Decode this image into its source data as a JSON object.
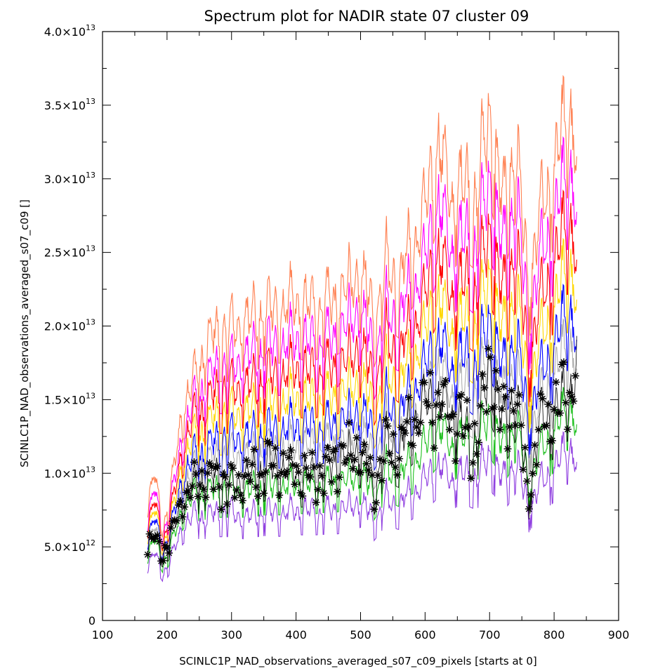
{
  "chart_data": {
    "type": "line",
    "title": "Spectrum plot for NADIR state 07 cluster 09",
    "xlabel": "SCINLC1P_NAD_observations_averaged_s07_c09_pixels [starts at 0]",
    "ylabel": "SCINLC1P_NAD_observations_averaged_s07_c09 []",
    "xlim": [
      100,
      900
    ],
    "ylim": [
      0,
      40000000000000.0
    ],
    "x_ticks": [
      100,
      200,
      300,
      400,
      500,
      600,
      700,
      800,
      900
    ],
    "x_tick_labels": [
      "100",
      "200",
      "300",
      "400",
      "500",
      "600",
      "700",
      "800",
      "900"
    ],
    "y_ticks": [
      0,
      5000000000000.0,
      10000000000000.0,
      15000000000000.0,
      20000000000000.0,
      25000000000000.0,
      30000000000000.0,
      35000000000000.0,
      40000000000000.0
    ],
    "y_tick_labels": [
      {
        "mantissa": "0",
        "exponent": ""
      },
      {
        "mantissa": "5.0×10",
        "exponent": "12"
      },
      {
        "mantissa": "1.0×10",
        "exponent": "13"
      },
      {
        "mantissa": "1.5×10",
        "exponent": "13"
      },
      {
        "mantissa": "2.0×10",
        "exponent": "13"
      },
      {
        "mantissa": "2.5×10",
        "exponent": "13"
      },
      {
        "mantissa": "3.0×10",
        "exponent": "13"
      },
      {
        "mantissa": "3.5×10",
        "exponent": "13"
      },
      {
        "mantissa": "4.0×10",
        "exponent": "13"
      }
    ],
    "x_range_data": [
      170,
      835
    ],
    "envelope": {
      "x": [
        170,
        180,
        195,
        210,
        225,
        240,
        260,
        280,
        300,
        320,
        340,
        360,
        380,
        400,
        420,
        440,
        460,
        480,
        500,
        520,
        540,
        560,
        580,
        600,
        620,
        640,
        660,
        680,
        700,
        710,
        720,
        740,
        760,
        780,
        800,
        820,
        830,
        835
      ],
      "max": [
        7500000000000.0,
        10000000000000.0,
        6500000000000.0,
        10000000000000.0,
        15000000000000.0,
        16500000000000.0,
        19000000000000.0,
        20000000000000.0,
        20000000000000.0,
        21000000000000.0,
        21000000000000.0,
        21500000000000.0,
        21500000000000.0,
        22000000000000.0,
        21500000000000.0,
        22000000000000.0,
        22000000000000.0,
        23000000000000.0,
        24000000000000.0,
        21000000000000.0,
        24500000000000.0,
        23500000000000.0,
        26000000000000.0,
        28000000000000.0,
        33000000000000.0,
        29000000000000.0,
        30000000000000.0,
        29000000000000.0,
        35000000000000.0,
        32000000000000.0,
        28000000000000.0,
        33000000000000.0,
        23000000000000.0,
        28000000000000.0,
        31000000000000.0,
        35000000000000.0,
        35000000000000.0,
        29000000000000.0
      ],
      "min": [
        3000000000000.0,
        3200000000000.0,
        2800000000000.0,
        4000000000000.0,
        5500000000000.0,
        6000000000000.0,
        5500000000000.0,
        5000000000000.0,
        4800000000000.0,
        3500000000000.0,
        5200000000000.0,
        4800000000000.0,
        4500000000000.0,
        4500000000000.0,
        4800000000000.0,
        5000000000000.0,
        4500000000000.0,
        4200000000000.0,
        4800000000000.0,
        3200000000000.0,
        4000000000000.0,
        4500000000000.0,
        5500000000000.0,
        5000000000000.0,
        6000000000000.0,
        6000000000000.0,
        5000000000000.0,
        4500000000000.0,
        7000000000000.0,
        6000000000000.0,
        6000000000000.0,
        5500000000000.0,
        4000000000000.0,
        6000000000000.0,
        5500000000000.0,
        7000000000000.0,
        8000000000000.0,
        9000000000000.0
      ]
    },
    "series": [
      {
        "color": "#ff7f50",
        "values": [
          7500000000000.0,
          9800000000000.0,
          6300000000000.0,
          9800000000000.0,
          14800000000000.0,
          16000000000000.0,
          18500000000000.0,
          19500000000000.0,
          19500000000000.0,
          20500000000000.0,
          20500000000000.0,
          21000000000000.0,
          21000000000000.0,
          21500000000000.0,
          21000000000000.0,
          21500000000000.0,
          21500000000000.0,
          22500000000000.0,
          23500000000000.0,
          20500000000000.0,
          24000000000000.0,
          23000000000000.0,
          25500000000000.0,
          27500000000000.0,
          32500000000000.0,
          28500000000000.0,
          29500000000000.0,
          28500000000000.0,
          34500000000000.0,
          31500000000000.0,
          27500000000000.0,
          32500000000000.0,
          22500000000000.0,
          27500000000000.0,
          30500000000000.0,
          34500000000000.0,
          34500000000000.0,
          28500000000000.0
        ]
      },
      {
        "color": "#ff00ff",
        "values": [
          6500000000000.0,
          8800000000000.0,
          5800000000000.0,
          8800000000000.0,
          13000000000000.0,
          14500000000000.0,
          16000000000000.0,
          17000000000000.0,
          17000000000000.0,
          18000000000000.0,
          18000000000000.0,
          18500000000000.0,
          18500000000000.0,
          19000000000000.0,
          18500000000000.0,
          19000000000000.0,
          19000000000000.0,
          20000000000000.0,
          21000000000000.0,
          18000000000000.0,
          21000000000000.0,
          20500000000000.0,
          22500000000000.0,
          24000000000000.0,
          28500000000000.0,
          25000000000000.0,
          26000000000000.0,
          25000000000000.0,
          30000000000000.0,
          28000000000000.0,
          24500000000000.0,
          29000000000000.0,
          20000000000000.0,
          24500000000000.0,
          27000000000000.0,
          30500000000000.0,
          30500000000000.0,
          25000000000000.0
        ]
      },
      {
        "color": "#ff0000",
        "values": [
          6000000000000.0,
          8000000000000.0,
          5400000000000.0,
          8000000000000.0,
          12000000000000.0,
          13500000000000.0,
          14500000000000.0,
          15500000000000.0,
          15500000000000.0,
          16000000000000.0,
          16000000000000.0,
          16500000000000.0,
          16500000000000.0,
          17000000000000.0,
          16500000000000.0,
          17000000000000.0,
          17000000000000.0,
          17500000000000.0,
          18500000000000.0,
          16000000000000.0,
          19000000000000.0,
          18000000000000.0,
          20000000000000.0,
          21500000000000.0,
          25000000000000.0,
          22000000000000.0,
          23000000000000.0,
          22000000000000.0,
          26500000000000.0,
          24500000000000.0,
          21500000000000.0,
          25500000000000.0,
          17500000000000.0,
          21500000000000.0,
          24000000000000.0,
          27000000000000.0,
          27000000000000.0,
          22000000000000.0
        ]
      },
      {
        "color": "#ffd700",
        "values": [
          5600000000000.0,
          7400000000000.0,
          5100000000000.0,
          7400000000000.0,
          11000000000000.0,
          12200000000000.0,
          13000000000000.0,
          13800000000000.0,
          13800000000000.0,
          14200000000000.0,
          14200000000000.0,
          14600000000000.0,
          14600000000000.0,
          15000000000000.0,
          14600000000000.0,
          15000000000000.0,
          15000000000000.0,
          15500000000000.0,
          16200000000000.0,
          14200000000000.0,
          16800000000000.0,
          16000000000000.0,
          17800000000000.0,
          19200000000000.0,
          22000000000000.0,
          19500000000000.0,
          20500000000000.0,
          19500000000000.0,
          23500000000000.0,
          21500000000000.0,
          19000000000000.0,
          22500000000000.0,
          15500000000000.0,
          19000000000000.0,
          21000000000000.0,
          24000000000000.0,
          24000000000000.0,
          19500000000000.0
        ]
      },
      {
        "color": "#0000ff",
        "values": [
          5200000000000.0,
          6800000000000.0,
          4800000000000.0,
          6800000000000.0,
          10000000000000.0,
          11000000000000.0,
          11500000000000.0,
          12200000000000.0,
          12200000000000.0,
          12500000000000.0,
          12500000000000.0,
          12800000000000.0,
          12800000000000.0,
          13200000000000.0,
          12800000000000.0,
          13200000000000.0,
          13200000000000.0,
          13600000000000.0,
          14200000000000.0,
          12500000000000.0,
          14800000000000.0,
          14000000000000.0,
          15600000000000.0,
          16800000000000.0,
          19200000000000.0,
          17000000000000.0,
          18000000000000.0,
          17000000000000.0,
          20500000000000.0,
          19000000000000.0,
          16500000000000.0,
          19500000000000.0,
          13500000000000.0,
          16500000000000.0,
          18500000000000.0,
          21000000000000.0,
          21000000000000.0,
          17000000000000.0
        ]
      },
      {
        "color": "#b0b0b0",
        "values": [
          4800000000000.0,
          6200000000000.0,
          4500000000000.0,
          6200000000000.0,
          9200000000000.0,
          10000000000000.0,
          10500000000000.0,
          11000000000000.0,
          11000000000000.0,
          11200000000000.0,
          11200000000000.0,
          11500000000000.0,
          11500000000000.0,
          11800000000000.0,
          11500000000000.0,
          11800000000000.0,
          11800000000000.0,
          12200000000000.0,
          12800000000000.0,
          11000000000000.0,
          13200000000000.0,
          12600000000000.0,
          14000000000000.0,
          15000000000000.0,
          17200000000000.0,
          15200000000000.0,
          16000000000000.0,
          15200000000000.0,
          18200000000000.0,
          16800000000000.0,
          14800000000000.0,
          17500000000000.0,
          12000000000000.0,
          14800000000000.0,
          16500000000000.0,
          18800000000000.0,
          18800000000000.0,
          15200000000000.0
        ]
      },
      {
        "color": "#20c020",
        "values": [
          4200000000000.0,
          5400000000000.0,
          3900000000000.0,
          5400000000000.0,
          7800000000000.0,
          8400000000000.0,
          8600000000000.0,
          8800000000000.0,
          8800000000000.0,
          8800000000000.0,
          8900000000000.0,
          9000000000000.0,
          9000000000000.0,
          9200000000000.0,
          9000000000000.0,
          9200000000000.0,
          9200000000000.0,
          9500000000000.0,
          9900000000000.0,
          8500000000000.0,
          10200000000000.0,
          9700000000000.0,
          10800000000000.0,
          11600000000000.0,
          13200000000000.0,
          11800000000000.0,
          12400000000000.0,
          11800000000000.0,
          14000000000000.0,
          13000000000000.0,
          11400000000000.0,
          13500000000000.0,
          9300000000000.0,
          11400000000000.0,
          12700000000000.0,
          14500000000000.0,
          14500000000000.0,
          11800000000000.0
        ]
      },
      {
        "color": "#9040e0",
        "values": [
          3500000000000.0,
          4500000000000.0,
          3200000000000.0,
          4500000000000.0,
          6600000000000.0,
          7000000000000.0,
          7000000000000.0,
          7200000000000.0,
          7200000000000.0,
          7000000000000.0,
          7200000000000.0,
          7300000000000.0,
          7200000000000.0,
          7400000000000.0,
          7300000000000.0,
          7400000000000.0,
          7400000000000.0,
          7600000000000.0,
          8000000000000.0,
          6800000000000.0,
          8200000000000.0,
          7800000000000.0,
          8700000000000.0,
          9300000000000.0,
          10600000000000.0,
          9500000000000.0,
          10000000000000.0,
          9500000000000.0,
          11300000000000.0,
          10500000000000.0,
          9200000000000.0,
          10900000000000.0,
          7500000000000.0,
          9200000000000.0,
          10200000000000.0,
          11700000000000.0,
          11700000000000.0,
          9500000000000.0
        ]
      },
      {
        "color": "#000000",
        "marker": "star",
        "values": [
          5000000000000.0,
          5500000000000.0,
          4500000000000.0,
          6000000000000.0,
          8500000000000.0,
          9000000000000.0,
          9500000000000.0,
          9800000000000.0,
          9000000000000.0,
          9800000000000.0,
          10000000000000.0,
          10500000000000.0,
          10200000000000.0,
          10000000000000.0,
          9600000000000.0,
          10200000000000.0,
          10600000000000.0,
          11000000000000.0,
          11500000000000.0,
          9000000000000.0,
          12000000000000.0,
          11500000000000.0,
          13500000000000.0,
          14500000000000.0,
          15000000000000.0,
          14000000000000.0,
          13000000000000.0,
          12000000000000.0,
          17500000000000.0,
          15500000000000.0,
          13000000000000.0,
          15500000000000.0,
          8500000000000.0,
          13500000000000.0,
          14000000000000.0,
          15500000000000.0,
          16000000000000.0,
          17000000000000.0
        ]
      }
    ]
  }
}
